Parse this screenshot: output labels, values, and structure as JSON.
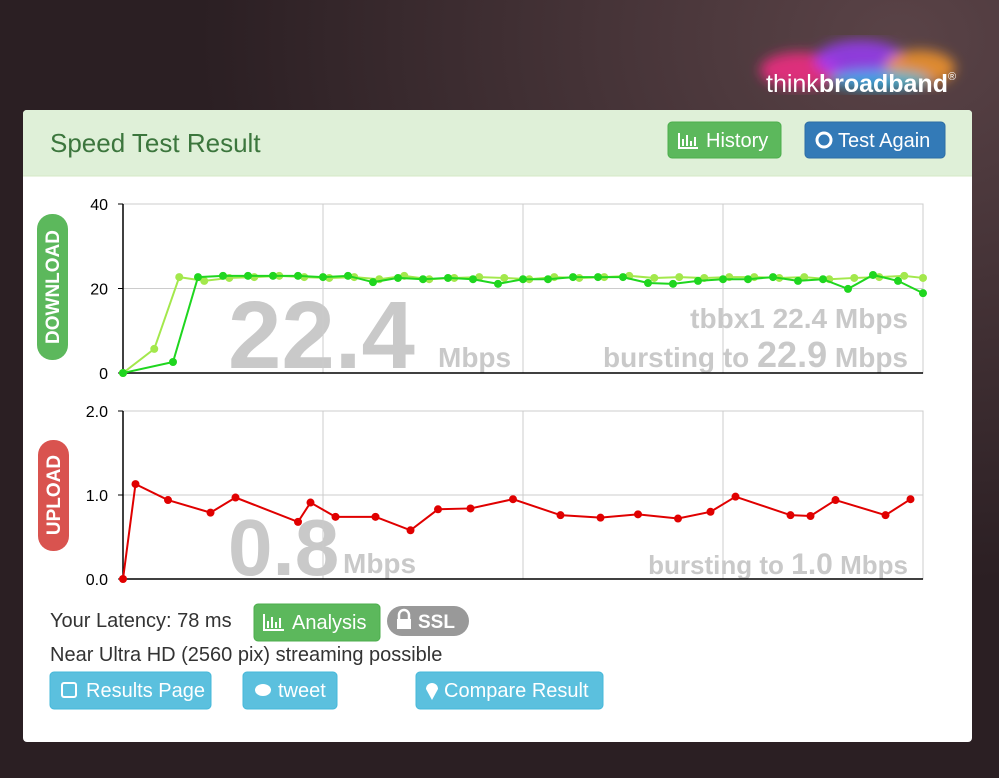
{
  "logo": {
    "part1": "think",
    "part2": "broadband",
    "mark": "®"
  },
  "header": {
    "title": "Speed Test Result",
    "history_button": "History",
    "test_again_button": "Test Again"
  },
  "chart_data": [
    {
      "type": "line",
      "side_label": "DOWNLOAD",
      "big_value": "22.4",
      "big_unit": "Mbps",
      "note": "tbbx1 22.4 Mbps",
      "burst_prefix": "bursting to",
      "burst_value": "22.9",
      "burst_unit": "Mbps",
      "xlim": [
        0,
        32
      ],
      "ylim": [
        0,
        40
      ],
      "yticks": [
        0,
        20,
        40
      ],
      "grid": true,
      "series": [
        {
          "color": "#a3e84c",
          "x": [
            0,
            1.25,
            2.25,
            3.25,
            4.25,
            5.25,
            6.25,
            7.25,
            8.25,
            9.25,
            10.25,
            11.25,
            12.25,
            13.25,
            14.25,
            15.25,
            16.25,
            17.25,
            18.25,
            19.25,
            20.25,
            21.25,
            22.25,
            23.25,
            24.25,
            25.25,
            26.25,
            27.25,
            28.25,
            29.25,
            30.25,
            31.25,
            32
          ],
          "values": [
            0,
            5.7,
            22.7,
            21.8,
            22.5,
            22.7,
            23.0,
            22.7,
            22.5,
            22.7,
            22.2,
            23.0,
            22.2,
            22.5,
            22.7,
            22.5,
            22.2,
            22.7,
            22.5,
            22.7,
            23.0,
            22.5,
            22.7,
            22.5,
            22.7,
            22.7,
            22.5,
            22.7,
            22.2,
            22.5,
            22.7,
            23.0,
            22.5
          ]
        },
        {
          "color": "#1fd61f",
          "x": [
            0,
            2,
            3,
            4,
            5,
            6,
            7,
            8,
            9,
            10,
            11,
            12,
            13,
            14,
            15,
            16,
            17,
            18,
            19,
            20,
            21,
            22,
            23,
            24,
            25,
            26,
            27,
            28,
            29,
            30,
            31,
            32
          ],
          "values": [
            0,
            2.6,
            22.7,
            23.0,
            23.0,
            23.0,
            23.0,
            22.7,
            23.0,
            21.5,
            22.5,
            22.2,
            22.5,
            22.2,
            21.1,
            22.2,
            22.2,
            22.7,
            22.7,
            22.7,
            21.3,
            21.1,
            21.8,
            22.2,
            22.2,
            22.7,
            21.8,
            22.2,
            19.9,
            23.2,
            21.8,
            18.9
          ]
        }
      ]
    },
    {
      "type": "line",
      "side_label": "UPLOAD",
      "big_value": "0.8",
      "big_unit": "Mbps",
      "burst_prefix": "bursting to",
      "burst_value": "1.0",
      "burst_unit": "Mbps",
      "xlim": [
        0,
        32
      ],
      "ylim": [
        0,
        2
      ],
      "yticks": [
        {
          "value": 0,
          "label": "0.0"
        },
        {
          "value": 1,
          "label": "1.0"
        },
        {
          "value": 2,
          "label": "2.0"
        }
      ],
      "grid": true,
      "series": [
        {
          "color": "#e00000",
          "x": [
            0,
            0.5,
            1.8,
            3.5,
            4.5,
            7,
            7.5,
            8.5,
            10.1,
            11.5,
            12.6,
            13.9,
            15.6,
            17.5,
            19.1,
            20.6,
            22.2,
            23.5,
            24.5,
            26.7,
            27.5,
            28.5,
            30.5,
            31.5
          ],
          "values": [
            0,
            1.13,
            0.94,
            0.79,
            0.97,
            0.68,
            0.91,
            0.74,
            0.74,
            0.58,
            0.83,
            0.84,
            0.95,
            0.76,
            0.73,
            0.77,
            0.72,
            0.8,
            0.98,
            0.76,
            0.75,
            0.94,
            0.76,
            0.95
          ]
        }
      ]
    }
  ],
  "footer": {
    "latency": "Your Latency: 78 ms",
    "analysis_button": "Analysis",
    "ssl_badge": "SSL",
    "streaming": "Near Ultra HD (2560 pix) streaming possible",
    "results_button": "Results Page",
    "tweet_button": "tweet",
    "compare_button": "Compare Result"
  }
}
